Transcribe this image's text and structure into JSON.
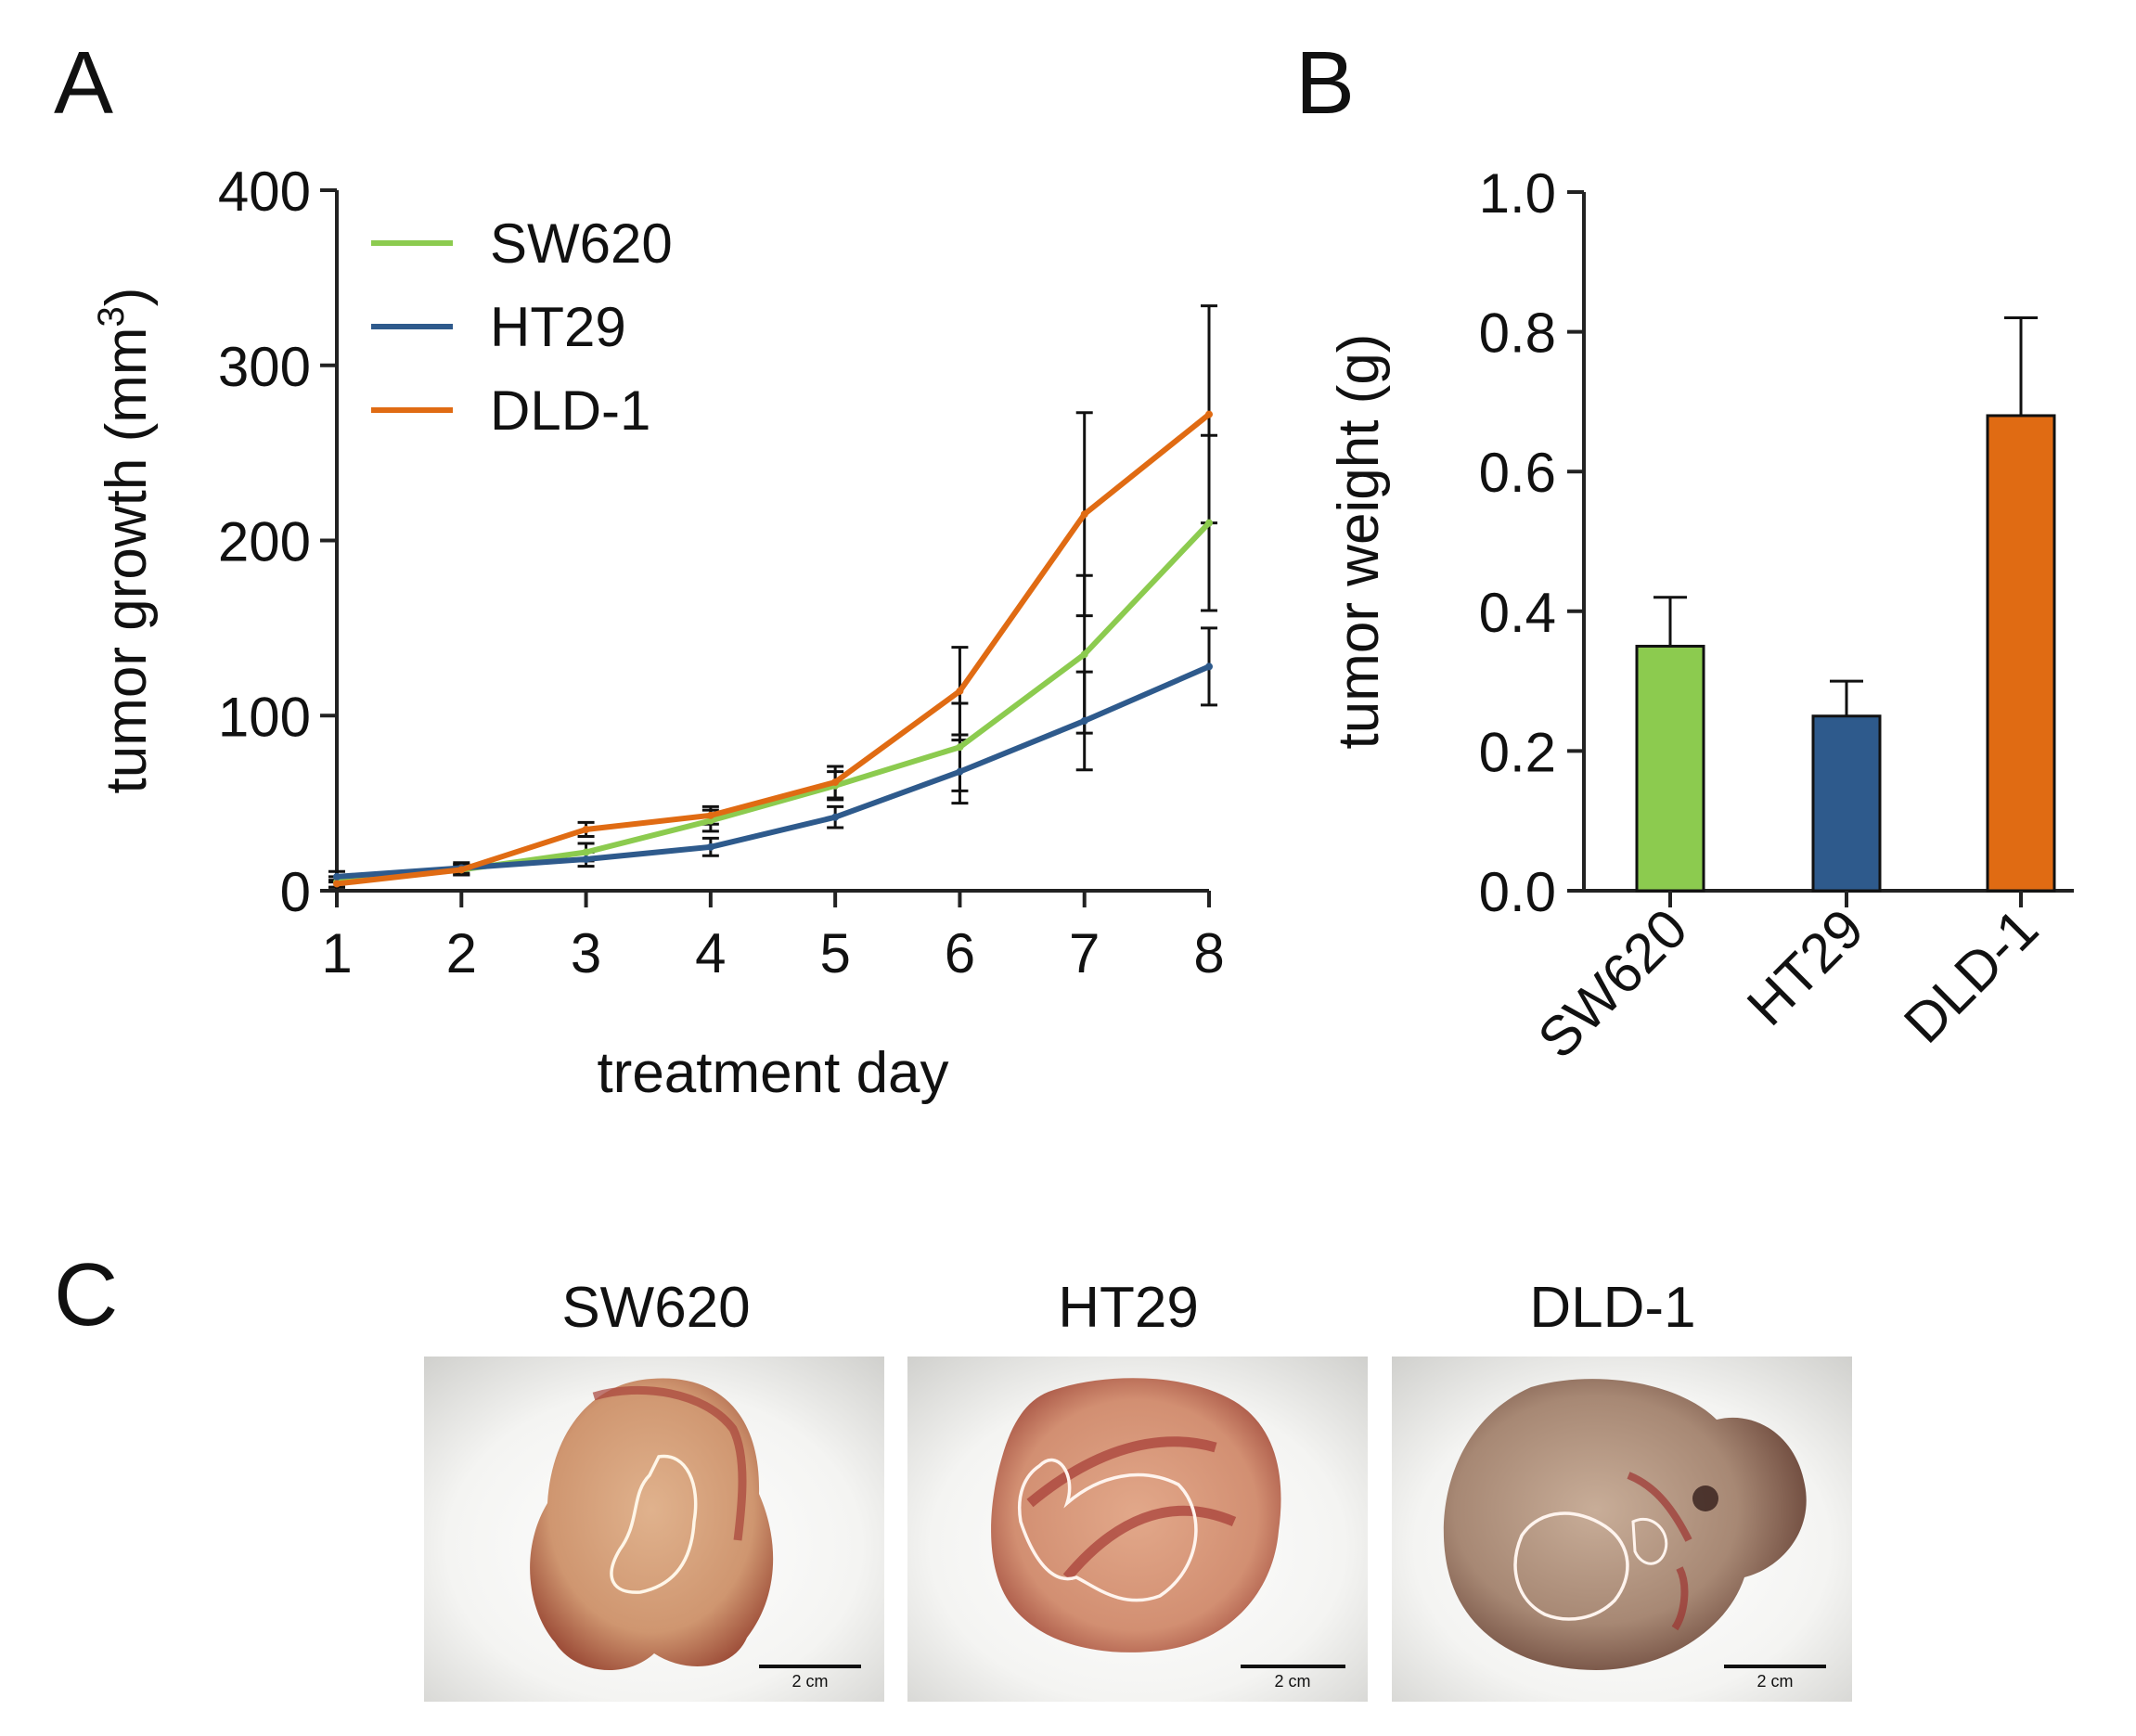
{
  "panels": {
    "a": "A",
    "b": "B",
    "c": "C"
  },
  "colors": {
    "sw620": "#8CCB4F",
    "ht29": "#2E5A8C",
    "dld1": "#E06B13",
    "axis": "#222222"
  },
  "chart_data": [
    {
      "type": "line",
      "xlabel": "treatment day",
      "ylabel": "tumor growth (mm",
      "ylabel_superscript": "3",
      "ylabel_close": ")",
      "x": [
        1,
        2,
        3,
        4,
        5,
        6,
        7,
        8
      ],
      "xlim": [
        1,
        8
      ],
      "ylim": [
        0,
        400
      ],
      "yticks": [
        0,
        100,
        200,
        300,
        400
      ],
      "grid": false,
      "legend_position": "top-left",
      "series": [
        {
          "name": "SW620",
          "color_key": "sw620",
          "values": [
            5,
            12,
            22,
            40,
            60,
            82,
            135,
            210
          ],
          "errors": [
            3,
            3,
            5,
            6,
            8,
            25,
            45,
            50
          ]
        },
        {
          "name": "HT29",
          "color_key": "ht29",
          "values": [
            8,
            13,
            18,
            25,
            42,
            68,
            97,
            128
          ],
          "errors": [
            3,
            3,
            4,
            5,
            6,
            18,
            28,
            22
          ]
        },
        {
          "name": "DLD-1",
          "color_key": "dld1",
          "values": [
            4,
            12,
            35,
            43,
            62,
            114,
            215,
            272
          ],
          "errors": [
            2,
            3,
            4,
            5,
            9,
            25,
            58,
            62
          ]
        }
      ]
    },
    {
      "type": "bar",
      "ylabel": "tumor weight (g)",
      "categories": [
        "SW620",
        "HT29",
        "DLD-1"
      ],
      "values": [
        0.35,
        0.25,
        0.68
      ],
      "errors": [
        0.07,
        0.05,
        0.14
      ],
      "color_keys": [
        "sw620",
        "ht29",
        "dld1"
      ],
      "ylim": [
        0,
        1.0
      ],
      "yticks": [
        "0.0",
        "0.2",
        "0.4",
        "0.6",
        "0.8",
        "1.0"
      ],
      "grid": false
    }
  ],
  "photos": [
    {
      "label": "SW620",
      "scale": "2 cm"
    },
    {
      "label": "HT29",
      "scale": "2 cm"
    },
    {
      "label": "DLD-1",
      "scale": "2 cm"
    }
  ]
}
